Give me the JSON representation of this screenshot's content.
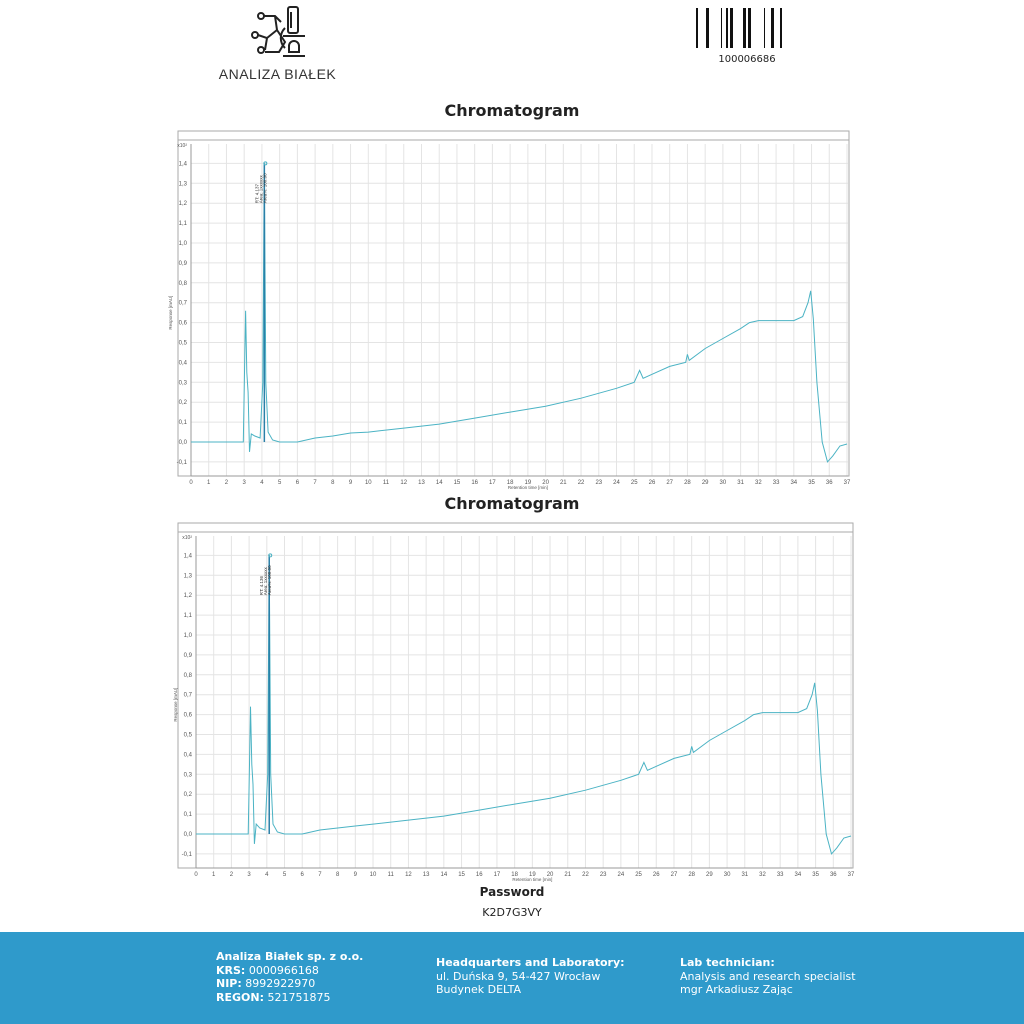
{
  "header": {
    "logo_text": "ANALIZA BIAŁEK",
    "barcode_number": "100006686"
  },
  "password": {
    "label": "Password",
    "value": "K2D7G3VY"
  },
  "footer": {
    "company": "Analiza Białek sp. z o.o.",
    "krs_label": "KRS:",
    "krs": "0000966168",
    "nip_label": "NIP:",
    "nip": "8992922970",
    "regon_label": "REGON:",
    "regon": "521751875",
    "hq_title": "Headquarters and Laboratory:",
    "hq_line1": "ul. Duńska 9, 54-427 Wrocław",
    "hq_line2": "Budynek DELTA",
    "tech_title": "Lab technician:",
    "tech_line1": "Analysis and research specialist",
    "tech_line2": "mgr Arkadiusz Zając"
  },
  "chart_data": [
    {
      "type": "line",
      "title": "Chromatogram",
      "xlabel": "Retention time [min]",
      "ylabel": "Response [mAU]",
      "y_multiplier": "x10²",
      "xlim": [
        0,
        37
      ],
      "ylim": [
        -0.15,
        1.45
      ],
      "grid": true,
      "color": "#4bb3c4",
      "peak_color": "#2a7fa8",
      "x_ticks": [
        "0",
        "1",
        "2",
        "3",
        "4",
        "5",
        "6",
        "7",
        "8",
        "9",
        "10",
        "11",
        "12",
        "13",
        "14",
        "15",
        "16",
        "17",
        "18",
        "19",
        "20",
        "21",
        "22",
        "23",
        "24",
        "25",
        "26",
        "27",
        "28",
        "29",
        "30",
        "31",
        "32",
        "33",
        "34",
        "35",
        "36",
        "37"
      ],
      "y_ticks": [
        "-0,1",
        "0,0",
        "0,1",
        "0,2",
        "0,3",
        "0,4",
        "0,5",
        "0,6",
        "0,7",
        "0,8",
        "0,9",
        "1,0",
        "1,1",
        "1,2",
        "1,3",
        "1,4"
      ],
      "peak_annotation": [
        "RT: 4.137",
        "Area: 1xxxxxx",
        "Area%: 100.00"
      ],
      "x": [
        0,
        2.95,
        3.02,
        3.08,
        3.15,
        3.22,
        3.3,
        3.4,
        3.6,
        3.9,
        4.05,
        4.137,
        4.22,
        4.35,
        4.6,
        5,
        6,
        7,
        8,
        9,
        10,
        12,
        14,
        16,
        18,
        20,
        22,
        24,
        25,
        25.3,
        25.5,
        26,
        27,
        27.9,
        28,
        28.1,
        29,
        30,
        31,
        31.5,
        32,
        33,
        34,
        34.5,
        34.8,
        34.95,
        35.1,
        35.3,
        35.6,
        35.9,
        36.2,
        36.6,
        37
      ],
      "y": [
        0,
        0,
        0.35,
        0.66,
        0.35,
        0.25,
        -0.05,
        0.04,
        0.03,
        0.02,
        0.3,
        1.4,
        0.3,
        0.05,
        0.01,
        0,
        0,
        0.02,
        0.03,
        0.045,
        0.05,
        0.07,
        0.09,
        0.12,
        0.15,
        0.18,
        0.22,
        0.27,
        0.3,
        0.36,
        0.32,
        0.34,
        0.38,
        0.4,
        0.44,
        0.41,
        0.47,
        0.52,
        0.57,
        0.6,
        0.61,
        0.61,
        0.61,
        0.63,
        0.7,
        0.76,
        0.62,
        0.3,
        0.0,
        -0.1,
        -0.07,
        -0.02,
        -0.01
      ]
    },
    {
      "type": "line",
      "title": "Chromatogram",
      "xlabel": "Retention time [min]",
      "ylabel": "Response [mAU]",
      "y_multiplier": "x10²",
      "xlim": [
        0,
        37
      ],
      "ylim": [
        -0.15,
        1.45
      ],
      "grid": true,
      "color": "#4bb3c4",
      "peak_color": "#2a7fa8",
      "x_ticks": [
        "0",
        "1",
        "2",
        "3",
        "4",
        "5",
        "6",
        "7",
        "8",
        "9",
        "10",
        "11",
        "12",
        "13",
        "14",
        "15",
        "16",
        "17",
        "18",
        "19",
        "20",
        "21",
        "22",
        "23",
        "24",
        "25",
        "26",
        "27",
        "28",
        "29",
        "30",
        "31",
        "32",
        "33",
        "34",
        "35",
        "36",
        "37"
      ],
      "y_ticks": [
        "-0,1",
        "0,0",
        "0,1",
        "0,2",
        "0,3",
        "0,4",
        "0,5",
        "0,6",
        "0,7",
        "0,8",
        "0,9",
        "1,0",
        "1,1",
        "1,2",
        "1,3",
        "1,4"
      ],
      "peak_annotation": [
        "RT: 4.136",
        "Area: 1xxxxxx",
        "Area%: 100.00"
      ],
      "x": [
        0,
        2.95,
        3.02,
        3.08,
        3.15,
        3.22,
        3.3,
        3.4,
        3.6,
        3.9,
        4.05,
        4.136,
        4.22,
        4.35,
        4.6,
        5,
        6,
        7,
        8,
        9,
        10,
        12,
        14,
        16,
        18,
        20,
        22,
        24,
        25,
        25.3,
        25.5,
        26,
        27,
        27.9,
        28,
        28.1,
        29,
        30,
        31,
        31.5,
        32,
        33,
        34,
        34.5,
        34.8,
        34.95,
        35.1,
        35.3,
        35.6,
        35.9,
        36.2,
        36.6,
        37
      ],
      "y": [
        0,
        0,
        0.35,
        0.64,
        0.35,
        0.25,
        -0.05,
        0.05,
        0.03,
        0.02,
        0.3,
        1.4,
        0.3,
        0.05,
        0.01,
        0,
        0,
        0.02,
        0.03,
        0.04,
        0.05,
        0.07,
        0.09,
        0.12,
        0.15,
        0.18,
        0.22,
        0.27,
        0.3,
        0.36,
        0.32,
        0.34,
        0.38,
        0.4,
        0.44,
        0.41,
        0.47,
        0.52,
        0.57,
        0.6,
        0.61,
        0.61,
        0.61,
        0.63,
        0.7,
        0.76,
        0.62,
        0.3,
        0.0,
        -0.1,
        -0.07,
        -0.02,
        -0.01
      ]
    }
  ]
}
